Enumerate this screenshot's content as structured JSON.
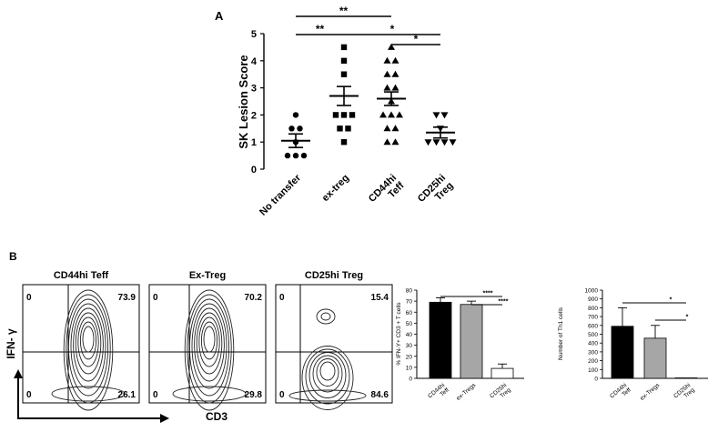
{
  "panels": {
    "a_label": "A",
    "b_label": "B"
  },
  "chart_data": [
    {
      "type": "scatter",
      "ylabel": "SK Lesion Score",
      "ylim": [
        0,
        5
      ],
      "yticks": [
        "0",
        "1",
        "2",
        "3",
        "4",
        "5"
      ],
      "categories": [
        "No transfer",
        "ex-treg",
        "CD44hi Teff",
        "CD25hi Treg"
      ],
      "markers": [
        "circle",
        "square",
        "triangle-up",
        "triangle-down"
      ],
      "points": [
        [
          2,
          1.5,
          1.5,
          1,
          0.5,
          0.5,
          0.5
        ],
        [
          4.5,
          4,
          3.5,
          2,
          2,
          2,
          1.5,
          1.5,
          1
        ],
        [
          4.5,
          4,
          4,
          3.5,
          3.5,
          3,
          3,
          2.5,
          2,
          2,
          2,
          1.5,
          1.5,
          1,
          1
        ],
        [
          2,
          2,
          1.5,
          1,
          1,
          1,
          1
        ]
      ],
      "means": [
        1.05,
        2.7,
        2.6,
        1.35
      ],
      "sems": [
        0.25,
        0.35,
        0.25,
        0.2
      ],
      "significance": [
        {
          "from": "No transfer",
          "to": "CD44hi Teff",
          "label": "**"
        },
        {
          "from": "No transfer",
          "to": "ex-treg",
          "label": "**"
        },
        {
          "from": "ex-treg",
          "to": "CD25hi Treg",
          "label": "*"
        },
        {
          "from": "CD44hi Teff",
          "to": "CD25hi Treg",
          "label": "*"
        }
      ]
    },
    {
      "type": "contour-plots",
      "ylabel": "IFN- γ",
      "xlabel": "CD3",
      "plots": [
        {
          "title": "CD44hi Teff",
          "ul": "0",
          "ur": "73.9",
          "ll": "0",
          "lr": "26.1"
        },
        {
          "title": "Ex-Treg",
          "ul": "0",
          "ur": "70.2",
          "ll": "0",
          "lr": "29.8"
        },
        {
          "title": "CD25hi Treg",
          "ul": "0",
          "ur": "15.4",
          "ll": "0",
          "lr": "84.6"
        }
      ]
    },
    {
      "type": "bar",
      "ylabel": "% IFN-Y+ CD3 + T cells",
      "ylim": [
        0,
        80
      ],
      "yticks": [
        "0",
        "10",
        "20",
        "30",
        "40",
        "50",
        "60",
        "70",
        "80"
      ],
      "categories": [
        "CD44hi Teff",
        "ex-Tregs",
        "CD25hi Treg"
      ],
      "values": [
        69,
        67,
        9
      ],
      "errors": [
        4,
        3,
        4
      ],
      "colors": [
        "#000000",
        "#a6a6a6",
        "#ffffff"
      ],
      "significance": [
        {
          "from": "CD44hi Teff",
          "to": "CD25hi Treg",
          "label": "****"
        },
        {
          "from": "ex-Tregs",
          "to": "CD25hi Treg",
          "label": "****"
        }
      ]
    },
    {
      "type": "bar",
      "ylabel": "Number of Th1 cells",
      "ylim": [
        0,
        1000
      ],
      "yticks": [
        "0",
        "100",
        "200",
        "300",
        "400",
        "500",
        "600",
        "700",
        "800",
        "900",
        "1000"
      ],
      "categories": [
        "CD44hi Teff",
        "ex-Tregs",
        "CD25hi Treg"
      ],
      "values": [
        590,
        455,
        5
      ],
      "errors": [
        210,
        145,
        0
      ],
      "colors": [
        "#000000",
        "#a6a6a6",
        "#ffffff"
      ],
      "significance": [
        {
          "from": "CD44hi Teff",
          "to": "CD25hi Treg",
          "label": "*"
        },
        {
          "from": "ex-Tregs",
          "to": "CD25hi Treg",
          "label": "*"
        }
      ]
    }
  ]
}
